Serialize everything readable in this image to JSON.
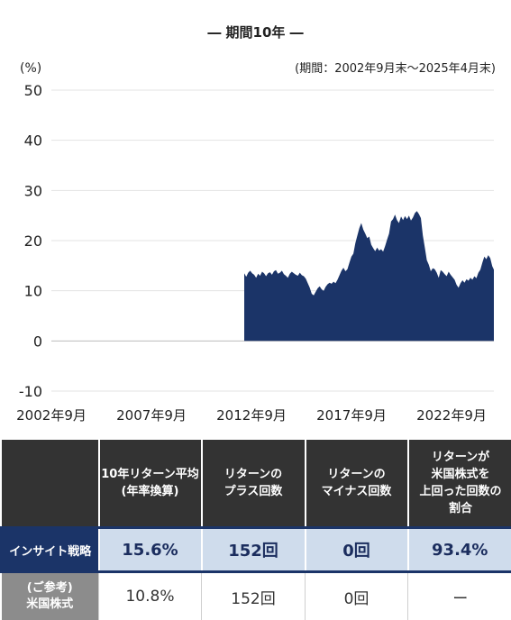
{
  "title": "― 期間10年 ―",
  "chart_data": {
    "type": "area",
    "ylabel": "(%)",
    "period_note": "(期間：2002年9月末〜2025年4月末)",
    "ylim": [
      -10,
      50
    ],
    "yticks": [
      50,
      40,
      30,
      20,
      10,
      0,
      -10
    ],
    "xticks": [
      "2002年9月",
      "2007年9月",
      "2012年9月",
      "2017年9月",
      "2022年9月"
    ],
    "xtick_years": [
      2002.75,
      2007.75,
      2012.75,
      2017.75,
      2022.75
    ],
    "xlim": [
      2002.75,
      2025.33
    ],
    "color": "#1b3468",
    "series": [
      {
        "x": [
          2012.75,
          2012.85,
          2012.95,
          2013.05,
          2013.15,
          2013.25,
          2013.35,
          2013.45,
          2013.55,
          2013.65,
          2013.75,
          2013.85,
          2013.95,
          2014.05,
          2014.15,
          2014.25,
          2014.35,
          2014.45,
          2014.55,
          2014.65,
          2014.75,
          2014.85,
          2014.95,
          2015.05,
          2015.15,
          2015.25,
          2015.35,
          2015.45,
          2015.55,
          2015.65,
          2015.75,
          2015.85,
          2015.95,
          2016.05,
          2016.15,
          2016.25,
          2016.35,
          2016.45,
          2016.55,
          2016.65,
          2016.75,
          2016.85,
          2016.95,
          2017.05,
          2017.15,
          2017.25,
          2017.35,
          2017.45,
          2017.55,
          2017.65,
          2017.75,
          2017.85,
          2017.95,
          2018.05,
          2018.15,
          2018.25,
          2018.35,
          2018.45,
          2018.55,
          2018.65,
          2018.75,
          2018.85,
          2018.95,
          2019.05,
          2019.15,
          2019.25,
          2019.35,
          2019.45,
          2019.55,
          2019.65,
          2019.75,
          2019.85,
          2019.95,
          2020.05,
          2020.15,
          2020.25,
          2020.35,
          2020.45,
          2020.55,
          2020.65,
          2020.75,
          2020.85,
          2020.95,
          2021.05,
          2021.15,
          2021.25,
          2021.35,
          2021.45,
          2021.55,
          2021.65,
          2021.75,
          2021.85,
          2021.95,
          2022.05,
          2022.15,
          2022.25,
          2022.35,
          2022.45,
          2022.55,
          2022.65,
          2022.75,
          2022.85,
          2022.95,
          2023.05,
          2023.15,
          2023.25,
          2023.35,
          2023.45,
          2023.55,
          2023.65,
          2023.75,
          2023.85,
          2023.95,
          2024.05,
          2024.15,
          2024.25,
          2024.35,
          2024.45,
          2024.55,
          2024.65,
          2024.75,
          2024.85,
          2024.95,
          2025.05,
          2025.15,
          2025.25,
          2025.33
        ],
        "y": [
          13.5,
          12.8,
          13.6,
          14.0,
          13.5,
          13.2,
          12.6,
          13.4,
          13.0,
          13.8,
          13.5,
          12.9,
          13.5,
          13.7,
          13.2,
          13.9,
          14.1,
          13.4,
          13.6,
          14.0,
          13.3,
          13.0,
          12.6,
          13.4,
          13.8,
          13.5,
          13.2,
          13.0,
          13.6,
          13.1,
          12.9,
          12.4,
          11.5,
          10.6,
          9.4,
          9.1,
          9.8,
          10.5,
          10.9,
          10.3,
          10.0,
          10.8,
          11.3,
          11.6,
          11.4,
          11.8,
          11.5,
          12.2,
          13.1,
          14.0,
          14.6,
          13.9,
          14.3,
          15.6,
          16.8,
          17.4,
          19.5,
          21.0,
          22.5,
          23.5,
          22.2,
          21.4,
          20.5,
          20.8,
          19.2,
          18.5,
          17.9,
          18.6,
          18.0,
          18.3,
          17.8,
          18.9,
          20.2,
          21.4,
          23.8,
          24.3,
          25.2,
          24.1,
          23.5,
          24.8,
          24.1,
          24.9,
          24.3,
          25.0,
          24.0,
          24.6,
          25.5,
          25.9,
          25.3,
          24.5,
          21.0,
          18.6,
          16.1,
          15.2,
          13.9,
          14.5,
          14.3,
          13.6,
          12.6,
          14.1,
          13.8,
          13.3,
          12.9,
          13.8,
          13.2,
          12.7,
          12.2,
          11.2,
          10.6,
          11.5,
          12.1,
          11.6,
          12.3,
          12.0,
          12.6,
          12.2,
          12.9,
          12.5,
          13.6,
          14.2,
          15.6,
          16.8,
          16.3,
          17.1,
          16.5,
          14.9,
          14.2
        ]
      }
    ]
  },
  "table": {
    "headers": [
      "",
      "10年リターン平均\n(年率換算)",
      "リターンの\nプラス回数",
      "リターンの\nマイナス回数",
      "リターンが\n米国株式を\n上回った回数の\n割合"
    ],
    "rows": [
      {
        "label": "インサイト戦略",
        "values": [
          "15.6%",
          "152回",
          "0回",
          "93.4%"
        ]
      },
      {
        "label": "(ご参考)\n米国株式",
        "values": [
          "10.8%",
          "152回",
          "0回",
          "ー"
        ]
      }
    ]
  }
}
